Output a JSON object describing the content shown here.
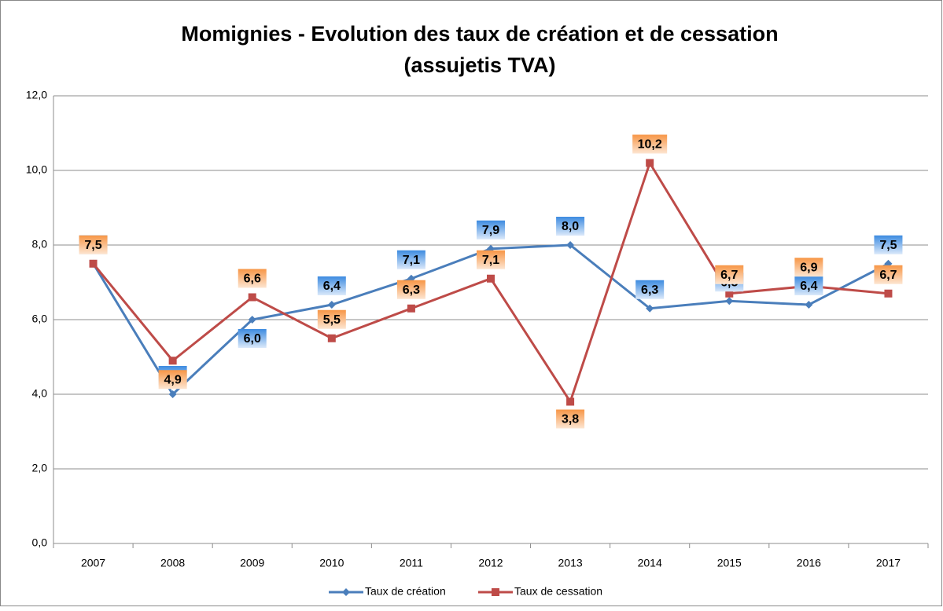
{
  "chart_data": {
    "type": "line",
    "title": "Momignies - Evolution des taux de création et de cessation",
    "subtitle": "(assujetis TVA)",
    "categories": [
      "2007",
      "2008",
      "2009",
      "2010",
      "2011",
      "2012",
      "2013",
      "2014",
      "2015",
      "2016",
      "2017"
    ],
    "series": [
      {
        "name": "Taux de création",
        "color": "#4a7ebb",
        "marker": "diamond",
        "values": [
          7.5,
          4.0,
          6.0,
          6.4,
          7.1,
          7.9,
          8.0,
          6.3,
          6.5,
          6.4,
          7.5
        ],
        "value_labels": [
          "7,5",
          "4,0",
          "6,0",
          "6,4",
          "7,1",
          "7,9",
          "8,0",
          "6,3",
          "6,5",
          "6,4",
          "7,5"
        ]
      },
      {
        "name": "Taux de cessation",
        "color": "#be4b48",
        "marker": "square",
        "values": [
          7.5,
          4.9,
          6.6,
          5.5,
          6.3,
          7.1,
          3.8,
          10.2,
          6.7,
          6.9,
          6.7
        ],
        "value_labels": [
          "7,5",
          "4,9",
          "6,6",
          "5,5",
          "6,3",
          "7,1",
          "3,8",
          "10,2",
          "6,7",
          "6,9",
          "6,7"
        ]
      }
    ],
    "ylim": [
      0,
      12
    ],
    "yticks": [
      {
        "value": 0,
        "label": "0,0"
      },
      {
        "value": 2,
        "label": "2,0"
      },
      {
        "value": 4,
        "label": "4,0"
      },
      {
        "value": 6,
        "label": "6,0"
      },
      {
        "value": 8,
        "label": "8,0"
      },
      {
        "value": 10,
        "label": "10,0"
      },
      {
        "value": 12,
        "label": "12,0"
      }
    ],
    "grid": true,
    "legend": "bottom"
  }
}
